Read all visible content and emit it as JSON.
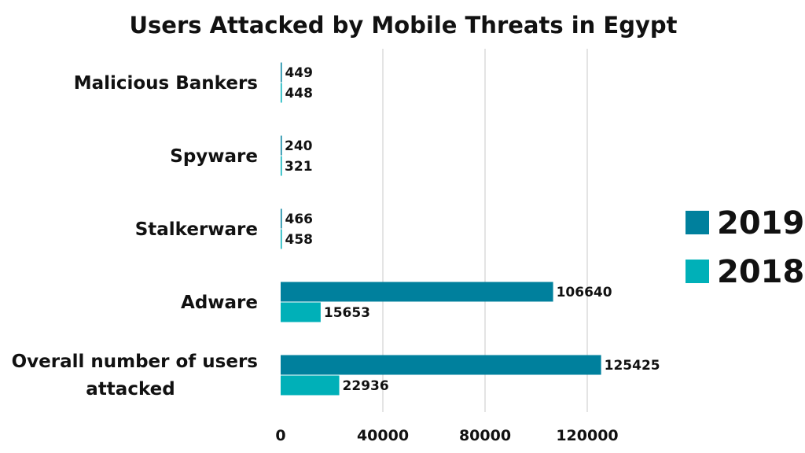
{
  "chart_data": {
    "type": "bar",
    "orientation": "horizontal",
    "title": "Users Attacked by Mobile Threats in Egypt",
    "categories": [
      "Malicious Bankers",
      "Spyware",
      "Stalkerware",
      "Adware",
      "Overall number of users attacked"
    ],
    "category_lines": [
      [
        "Malicious Bankers"
      ],
      [
        "Spyware"
      ],
      [
        "Stalkerware"
      ],
      [
        "Adware"
      ],
      [
        "Overall number of users",
        "attacked"
      ]
    ],
    "series": [
      {
        "name": "2019",
        "color": "#00809d",
        "values": [
          449,
          240,
          466,
          106640,
          125425
        ]
      },
      {
        "name": "2018",
        "color": "#00b0b8",
        "values": [
          448,
          321,
          458,
          15653,
          22936
        ]
      }
    ],
    "xlim": [
      0,
      140000
    ],
    "xticks": [
      0,
      40000,
      80000,
      120000
    ],
    "xtick_labels": [
      "0",
      "40000",
      "80000",
      "120000"
    ],
    "grid": true,
    "legend_position": "right"
  }
}
